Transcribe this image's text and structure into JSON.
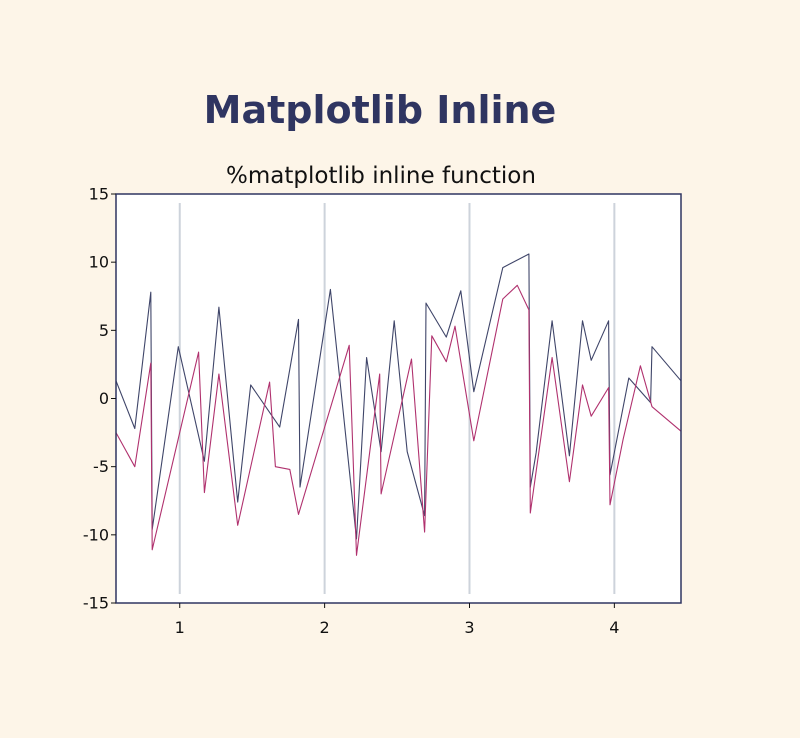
{
  "page": {
    "heading": "Matplotlib Inline"
  },
  "colors": {
    "background": "#fdf5e8",
    "heading": "#2f3561",
    "frame": "#2f3561",
    "plot_area": "#ffffff",
    "gridline": "#cdd3db"
  },
  "chart_data": {
    "type": "line",
    "title": "%matplotlib inline function",
    "xlabel": "",
    "ylabel": "",
    "xlim": [
      0.56,
      4.46
    ],
    "ylim": [
      -15,
      15
    ],
    "xticks": [
      1,
      2,
      3,
      4
    ],
    "xtick_labels": [
      "1",
      "2",
      "3",
      "4"
    ],
    "yticks": [
      15,
      10,
      5,
      0,
      -5,
      -10,
      -15
    ],
    "ytick_labels": [
      "15",
      "10",
      "5",
      "0",
      "-5",
      "-10",
      "-15"
    ],
    "grid": "vertical lines at x ticks",
    "legend": "none",
    "series": [
      {
        "color": "#3f4569",
        "x": [
          0.56,
          0.69,
          0.8,
          0.81,
          0.99,
          1.17,
          1.27,
          1.4,
          1.49,
          1.69,
          1.82,
          1.83,
          2.04,
          2.22,
          2.29,
          2.39,
          2.48,
          2.57,
          2.69,
          2.7,
          2.84,
          2.94,
          3.03,
          3.23,
          3.41,
          3.42,
          3.46,
          3.57,
          3.69,
          3.78,
          3.84,
          3.96,
          3.97,
          4.1,
          4.25,
          4.26,
          4.46
        ],
        "y": [
          1.3,
          -2.2,
          7.8,
          -9.6,
          3.8,
          -4.6,
          6.7,
          -7.6,
          1.0,
          -2.1,
          5.8,
          -6.5,
          8.0,
          -10.3,
          3.0,
          -3.9,
          5.7,
          -3.9,
          -8.6,
          7.0,
          4.5,
          7.9,
          0.5,
          9.6,
          10.6,
          -6.5,
          -4.0,
          5.7,
          -4.2,
          5.7,
          2.8,
          5.7,
          -5.6,
          1.5,
          -0.3,
          3.8,
          1.3
        ]
      },
      {
        "color": "#b0316e",
        "x": [
          0.56,
          0.69,
          0.8,
          0.81,
          1.13,
          1.17,
          1.27,
          1.4,
          1.62,
          1.66,
          1.76,
          1.82,
          2.17,
          2.22,
          2.38,
          2.39,
          2.6,
          2.69,
          2.74,
          2.84,
          2.9,
          3.03,
          3.23,
          3.33,
          3.41,
          3.42,
          3.57,
          3.69,
          3.78,
          3.84,
          3.96,
          3.97,
          4.06,
          4.18,
          4.26,
          4.46
        ],
        "y": [
          -2.5,
          -5.0,
          2.6,
          -11.1,
          3.4,
          -6.9,
          1.8,
          -9.3,
          1.2,
          -5.0,
          -5.2,
          -8.5,
          3.9,
          -11.5,
          1.8,
          -7.0,
          2.9,
          -9.8,
          4.6,
          2.7,
          5.3,
          -3.1,
          7.3,
          8.3,
          6.5,
          -8.4,
          3.0,
          -6.1,
          1.0,
          -1.3,
          0.8,
          -7.8,
          -3.0,
          2.4,
          -0.6,
          -2.4
        ]
      }
    ]
  }
}
